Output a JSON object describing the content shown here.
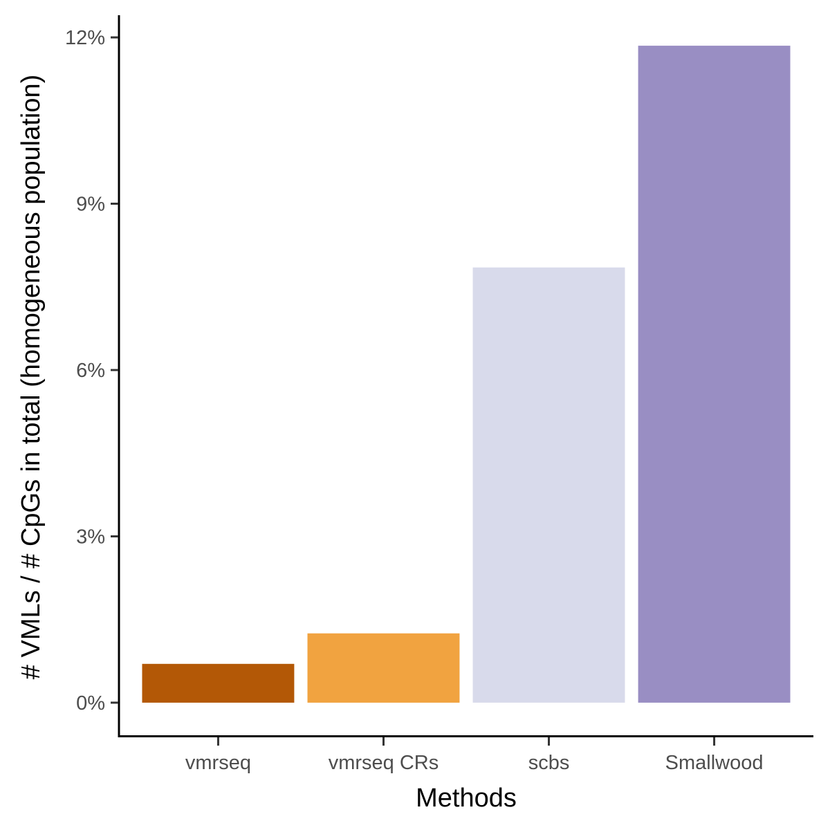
{
  "chart_data": {
    "type": "bar",
    "title": "",
    "xlabel": "Methods",
    "ylabel": "# VMLs / # CpGs in total (homogeneous population)",
    "categories": [
      "vmrseq",
      "vmrseq CRs",
      "scbs",
      "Smallwood"
    ],
    "values": [
      0.7,
      1.25,
      7.85,
      11.85
    ],
    "colors": [
      "#b35806",
      "#f1a340",
      "#d8daeb",
      "#998ec3"
    ],
    "ylim": [
      -0.6,
      12.4
    ],
    "yticks": [
      0,
      3,
      6,
      9,
      12
    ],
    "ytick_labels": [
      "0%",
      "3%",
      "6%",
      "9%",
      "12%"
    ],
    "grid": false,
    "legend": "none"
  }
}
